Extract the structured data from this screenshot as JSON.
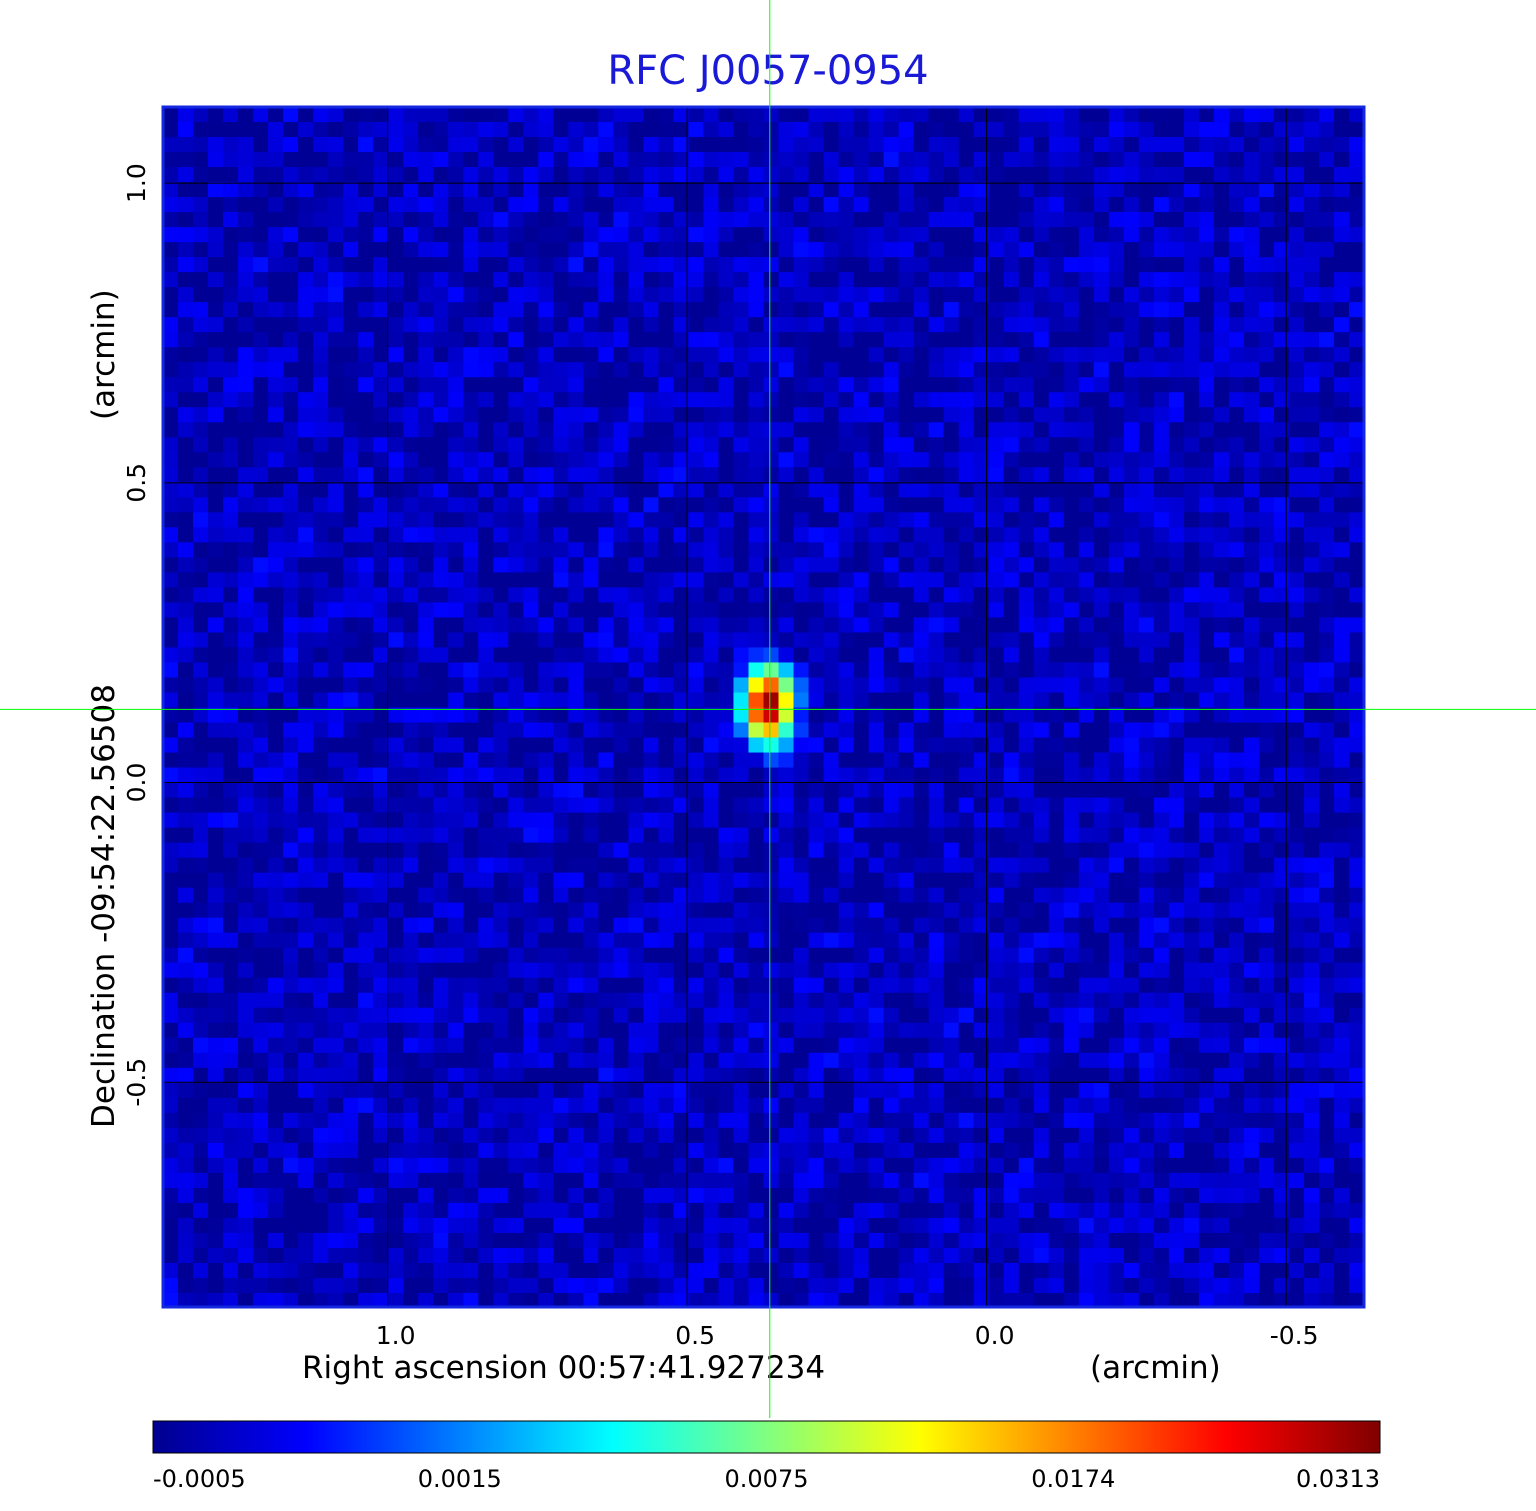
{
  "chart_data": {
    "type": "heatmap",
    "title": "RFC J0057-0954",
    "colormap": "jet",
    "x_axis": {
      "label": "Right ascension  00:57:41.927234",
      "unit_label": "(arcmin)",
      "ticks": [
        "1.0",
        "0.5",
        "0.0",
        "-0.5"
      ],
      "tick_values": [
        1.0,
        0.5,
        0.0,
        -0.5
      ],
      "range": [
        1.375,
        -0.63
      ]
    },
    "y_axis": {
      "label": "Declination  -09:54:22.56508",
      "unit_label": "(arcmin)",
      "ticks": [
        "1.0",
        "0.5",
        "0.0",
        "-0.5"
      ],
      "tick_values": [
        1.0,
        0.5,
        0.0,
        -0.5
      ],
      "range": [
        -0.875,
        1.127
      ]
    },
    "grid": true,
    "crosshair": {
      "x": 0.362,
      "y": 0.122,
      "color": "#00ff00"
    },
    "source": {
      "x": 0.365,
      "y": 0.13,
      "peak": 0.0313,
      "sigma_x": 0.022,
      "sigma_y": 0.034
    },
    "background_level": -0.0002,
    "colorbar": {
      "ticks": [
        "-0.0005",
        "0.0015",
        "0.0075",
        "0.0174",
        "0.0313"
      ],
      "tick_values": [
        -0.0005,
        0.0015,
        0.0075,
        0.0174,
        0.0313
      ]
    }
  }
}
